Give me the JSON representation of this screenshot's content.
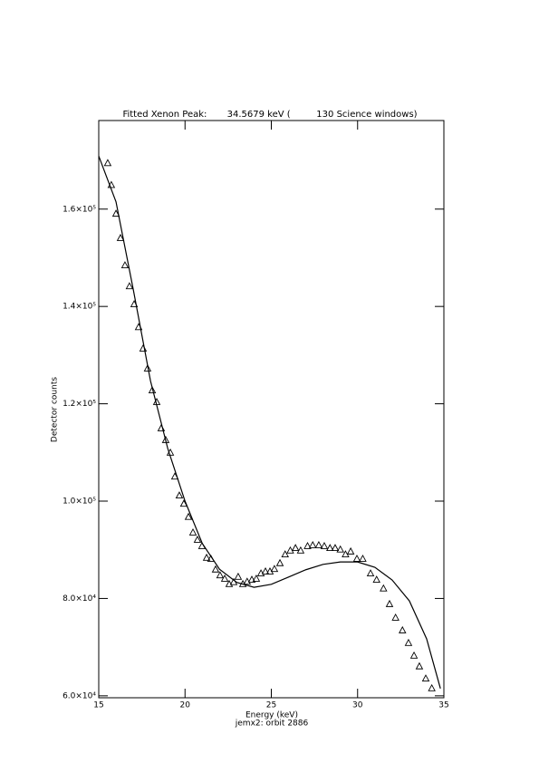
{
  "chart_data": {
    "type": "line",
    "title": "Fitted Xenon Peak:       34.5679 keV (         130 Science windows)",
    "xlabel": "Energy (keV)",
    "subtitle": "jemx2: orbit 2886",
    "ylabel": "Detector counts",
    "xlim": [
      15,
      35
    ],
    "xticks": [
      15,
      20,
      25,
      30,
      35
    ],
    "ylim": [
      59600,
      178200
    ],
    "yticks": [
      {
        "value": 60000,
        "label": "6.0×10⁴"
      },
      {
        "value": 80000,
        "label": "8.0×10⁴"
      },
      {
        "value": 100000,
        "label": "1.0×10⁵"
      },
      {
        "value": 120000,
        "label": "1.2×10⁵"
      },
      {
        "value": 140000,
        "label": "1.4×10⁵"
      },
      {
        "value": 160000,
        "label": "1.6×10⁵"
      }
    ],
    "series": [
      {
        "color": "#000000",
        "marker": "triangle",
        "line": false,
        "x": [
          15.52,
          15.73,
          16.0,
          16.26,
          16.52,
          16.78,
          17.05,
          17.31,
          17.57,
          17.83,
          18.1,
          18.36,
          18.62,
          18.88,
          19.15,
          19.41,
          19.67,
          19.93,
          20.2,
          20.46,
          20.72,
          20.98,
          21.25,
          21.5,
          21.77,
          22.03,
          22.3,
          22.56,
          22.82,
          23.08,
          23.35,
          23.6,
          23.87,
          24.13,
          24.4,
          24.66,
          24.92,
          25.18,
          25.5,
          25.8,
          26.1,
          26.4,
          26.7,
          27.1,
          27.4,
          27.75,
          28.07,
          28.4,
          28.7,
          29.0,
          29.3,
          29.6,
          29.96,
          30.3,
          30.75,
          31.1,
          31.5,
          31.85,
          32.2,
          32.6,
          32.95,
          33.27,
          33.58,
          33.95,
          34.3
        ],
        "values": [
          169400,
          164900,
          159000,
          154000,
          148400,
          144100,
          140400,
          135700,
          131300,
          127200,
          122700,
          120300,
          114900,
          112500,
          109900,
          105000,
          101100,
          99400,
          96700,
          93500,
          92000,
          90700,
          88300,
          88100,
          85900,
          84700,
          84000,
          82900,
          83300,
          84400,
          82900,
          83400,
          83800,
          84000,
          85100,
          85500,
          85500,
          86000,
          87200,
          89000,
          89800,
          90300,
          89800,
          90700,
          90900,
          90900,
          90700,
          90300,
          90300,
          90000,
          89000,
          89600,
          88100,
          88100,
          85100,
          83800,
          82000,
          78800,
          76000,
          73400,
          70800,
          68200,
          66000,
          63500,
          61500
        ]
      },
      {
        "color": "#000000",
        "marker": "none",
        "line": true,
        "x": [
          15,
          16,
          17,
          18,
          19,
          20,
          21,
          22,
          23,
          24,
          25,
          26,
          27,
          28,
          29,
          30,
          31,
          32,
          33,
          34,
          34.8
        ],
        "values": [
          170900,
          161500,
          143500,
          124700,
          110800,
          100000,
          91300,
          86000,
          83300,
          82300,
          82900,
          84400,
          85900,
          87000,
          87500,
          87500,
          86400,
          83800,
          79500,
          71700,
          61500
        ]
      }
    ]
  }
}
